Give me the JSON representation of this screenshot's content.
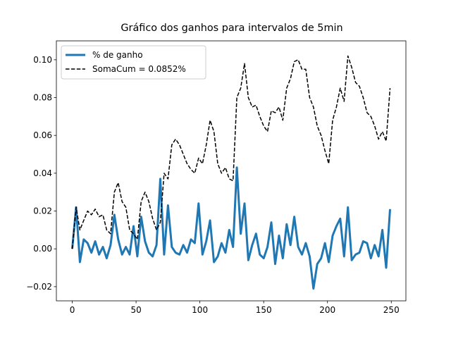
{
  "chart_data": {
    "type": "line",
    "title": "Gráfico dos ganhos para intervalos de 5min",
    "x": [
      0,
      3,
      6,
      9,
      12,
      15,
      18,
      21,
      24,
      27,
      30,
      33,
      36,
      39,
      42,
      45,
      48,
      51,
      54,
      57,
      60,
      63,
      66,
      69,
      72,
      75,
      78,
      81,
      84,
      87,
      90,
      93,
      96,
      99,
      102,
      105,
      108,
      111,
      114,
      117,
      120,
      123,
      126,
      129,
      132,
      135,
      138,
      141,
      144,
      147,
      150,
      153,
      156,
      159,
      162,
      165,
      168,
      171,
      174,
      177,
      180,
      183,
      186,
      189,
      192,
      195,
      198,
      201,
      204,
      207,
      210,
      213,
      216,
      219,
      222,
      225,
      228,
      231,
      234,
      237,
      240,
      243,
      246,
      249
    ],
    "series": [
      {
        "name": "% de ganho",
        "color": "#1f77b4",
        "dash": false,
        "width": 3,
        "values": [
          0,
          0.022,
          -0.007,
          0.005,
          0.003,
          -0.002,
          0.004,
          -0.003,
          0.001,
          -0.005,
          0.002,
          0.018,
          0.005,
          -0.003,
          0.001,
          -0.003,
          0.012,
          -0.004,
          0.017,
          0.004,
          -0.002,
          -0.004,
          0.002,
          0.037,
          -0.003,
          0.023,
          0.001,
          -0.002,
          -0.003,
          0.002,
          -0.002,
          0.005,
          0.003,
          0.024,
          -0.003,
          0.004,
          0.015,
          -0.007,
          -0.004,
          0.003,
          -0.002,
          0.01,
          0.001,
          0.043,
          0.008,
          0.024,
          -0.006,
          0.002,
          0.008,
          -0.003,
          -0.005,
          0.001,
          0.014,
          -0.008,
          0.007,
          -0.005,
          0.013,
          0.002,
          0.017,
          0.001,
          -0.003,
          0.003,
          -0.004,
          -0.021,
          -0.008,
          -0.005,
          0.003,
          -0.007,
          0.007,
          0.012,
          0.016,
          -0.004,
          0.022,
          -0.006,
          -0.003,
          -0.002,
          0.004,
          0.003,
          -0.005,
          0.002,
          -0.004,
          0.01,
          -0.01,
          0.021
        ]
      },
      {
        "name": "SomaCum = 0.0852%",
        "color": "#000000",
        "dash": true,
        "width": 1.5,
        "values": [
          0,
          0.022,
          0.01,
          0.015,
          0.02,
          0.018,
          0.021,
          0.017,
          0.018,
          0.01,
          0.008,
          0.03,
          0.035,
          0.025,
          0.022,
          0.01,
          0.008,
          0.005,
          0.025,
          0.03,
          0.025,
          0.016,
          0.01,
          0.014,
          0.04,
          0.037,
          0.055,
          0.058,
          0.055,
          0.05,
          0.045,
          0.042,
          0.04,
          0.048,
          0.045,
          0.055,
          0.068,
          0.062,
          0.045,
          0.04,
          0.043,
          0.037,
          0.036,
          0.08,
          0.085,
          0.098,
          0.08,
          0.075,
          0.076,
          0.07,
          0.065,
          0.062,
          0.073,
          0.072,
          0.075,
          0.068,
          0.085,
          0.09,
          0.099,
          0.1,
          0.095,
          0.095,
          0.08,
          0.075,
          0.065,
          0.06,
          0.052,
          0.045,
          0.068,
          0.075,
          0.085,
          0.078,
          0.102,
          0.096,
          0.088,
          0.086,
          0.08,
          0.072,
          0.07,
          0.065,
          0.058,
          0.062,
          0.057,
          0.085
        ]
      }
    ],
    "xlim": [
      -12.45,
      261.45
    ],
    "ylim": [
      -0.0275,
      0.11
    ],
    "xticks": [
      0,
      50,
      100,
      150,
      200,
      250
    ],
    "yticks": [
      {
        "value": -0.02,
        "label": "−0.02"
      },
      {
        "value": 0,
        "label": "0.00"
      },
      {
        "value": 0.02,
        "label": "0.02"
      },
      {
        "value": 0.04,
        "label": "0.04"
      },
      {
        "value": 0.06,
        "label": "0.06"
      },
      {
        "value": 0.08,
        "label": "0.08"
      },
      {
        "value": 0.1,
        "label": "0.10"
      }
    ],
    "legend": "upper left"
  }
}
